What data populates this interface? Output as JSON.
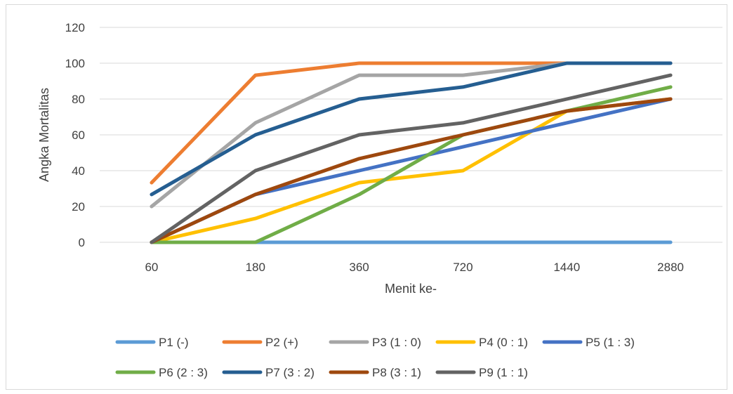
{
  "chart_data": {
    "type": "line",
    "title": "",
    "xlabel": "Menit ke-",
    "ylabel": "Angka Mortalitas",
    "categories": [
      "60",
      "180",
      "360",
      "720",
      "1440",
      "2880"
    ],
    "ylim": [
      0,
      120
    ],
    "yticks": [
      0,
      20,
      40,
      60,
      80,
      100,
      120
    ],
    "grid": "horizontal",
    "legend_position": "bottom",
    "series": [
      {
        "name": "P1 (-)",
        "color": "#5b9bd5",
        "values": [
          0,
          0,
          0,
          0,
          0,
          0
        ]
      },
      {
        "name": "P2 (+)",
        "color": "#ed7d31",
        "values": [
          33.3,
          93.3,
          100,
          100,
          100,
          100
        ]
      },
      {
        "name": "P3 (1 : 0)",
        "color": "#a5a5a5",
        "values": [
          20,
          66.7,
          93.3,
          93.3,
          100,
          100
        ]
      },
      {
        "name": "P4 (0 : 1)",
        "color": "#ffc000",
        "values": [
          0,
          13.3,
          33.3,
          40,
          73.3,
          80
        ]
      },
      {
        "name": "P5 (1 : 3)",
        "color": "#4472c4",
        "values": [
          0,
          26.7,
          40,
          53.3,
          66.7,
          80
        ]
      },
      {
        "name": "P6 (2 : 3)",
        "color": "#70ad47",
        "values": [
          0,
          0,
          26.7,
          60,
          73.3,
          86.7
        ]
      },
      {
        "name": "P7 (3 : 2)",
        "color": "#255e91",
        "values": [
          26.7,
          60,
          80,
          86.7,
          100,
          100
        ]
      },
      {
        "name": "P8 (3 : 1)",
        "color": "#9e480e",
        "values": [
          0,
          26.7,
          46.7,
          60,
          73.3,
          80
        ]
      },
      {
        "name": "P9 (1 : 1)",
        "color": "#636363",
        "values": [
          0,
          40,
          60,
          66.7,
          80,
          93.3
        ]
      }
    ]
  }
}
